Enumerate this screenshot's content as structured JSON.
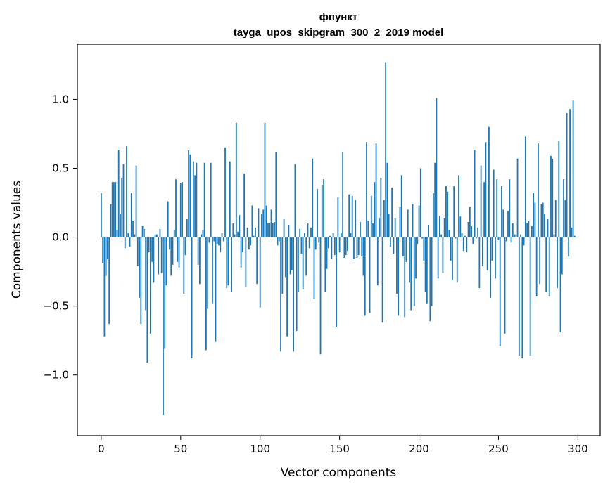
{
  "chart_data": {
    "type": "bar",
    "title": "фпункт",
    "subtitle": "tayga_upos_skipgram_300_2_2019 model",
    "xlabel": "Vector components",
    "ylabel": "Components values",
    "xlim": [
      -15,
      314
    ],
    "ylim": [
      -1.44,
      1.4
    ],
    "grid": false,
    "bar_color": "#1f77b4",
    "x_ticks": [
      0,
      50,
      100,
      150,
      200,
      250,
      300
    ],
    "x_tick_labels": [
      "0",
      "50",
      "100",
      "150",
      "200",
      "250",
      "300"
    ],
    "y_ticks": [
      -1.0,
      -0.5,
      0.0,
      0.5,
      1.0
    ],
    "y_tick_labels": [
      "−1.0",
      "−0.5",
      "0.0",
      "0.5",
      "1.0"
    ],
    "values": [
      0.32,
      -0.19,
      -0.72,
      -0.28,
      -0.16,
      -0.63,
      0.24,
      0.4,
      0.4,
      0.4,
      0.05,
      0.63,
      0.17,
      0.43,
      0.53,
      -0.08,
      0.66,
      0.03,
      -0.07,
      0.32,
      0.12,
      0.02,
      0.52,
      -0.21,
      -0.44,
      -0.63,
      0.08,
      0.06,
      -0.53,
      -0.91,
      -0.11,
      -0.7,
      -0.18,
      -0.33,
      0.02,
      0.02,
      -0.27,
      0.06,
      -0.26,
      -1.29,
      -0.81,
      -0.35,
      0.26,
      -0.09,
      -0.28,
      -0.2,
      0.05,
      0.42,
      -0.18,
      -0.22,
      0.39,
      0.4,
      -0.41,
      -0.13,
      0.13,
      0.63,
      0.6,
      -0.88,
      0.55,
      0.45,
      0.54,
      -0.2,
      -0.34,
      0.02,
      0.05,
      0.54,
      -0.82,
      -0.52,
      -0.04,
      0.54,
      -0.48,
      -0.03,
      -0.76,
      -0.05,
      -0.06,
      -0.11,
      0.03,
      -0.03,
      0.65,
      -0.37,
      -0.35,
      0.55,
      -0.4,
      0.1,
      0.02,
      0.83,
      0.04,
      0.16,
      -0.22,
      -0.11,
      0.46,
      -0.36,
      0.07,
      -0.09,
      -0.06,
      0.23,
      0.01,
      0.07,
      -0.34,
      0.21,
      -0.51,
      0.17,
      0.2,
      0.83,
      0.23,
      0.1,
      0.1,
      0.2,
      0.1,
      0.11,
      0.62,
      -0.06,
      -0.03,
      -0.83,
      -0.41,
      0.13,
      -0.29,
      -0.72,
      0.09,
      -0.27,
      -0.24,
      -0.83,
      0.53,
      -0.68,
      -0.4,
      0.06,
      -0.12,
      -0.38,
      0.03,
      -0.28,
      0.1,
      -0.08,
      0.07,
      0.57,
      -0.45,
      -0.09,
      0.35,
      -0.04,
      -0.85,
      0.38,
      0.42,
      -0.4,
      -0.23,
      -0.08,
      0.01,
      -0.16,
      0.03,
      -0.13,
      -0.65,
      0.29,
      -0.11,
      0.03,
      0.62,
      -0.15,
      -0.13,
      -0.1,
      0.31,
      0.03,
      0.3,
      -0.16,
      0.27,
      -0.15,
      -0.13,
      0.11,
      -0.14,
      -0.28,
      -0.57,
      0.69,
      0.12,
      -0.55,
      0.3,
      0.1,
      0.4,
      0.68,
      -0.35,
      0.14,
      0.43,
      -0.62,
      0.27,
      1.27,
      0.54,
      0.17,
      -0.07,
      0.36,
      -0.12,
      0.14,
      -0.41,
      -0.57,
      0.22,
      0.45,
      -0.14,
      -0.58,
      -0.18,
      0.2,
      -0.33,
      -0.53,
      0.24,
      -0.5,
      -0.3,
      -0.05,
      0.23,
      0.5,
      -0.01,
      -0.17,
      -0.4,
      -0.48,
      0.09,
      -0.61,
      -0.5,
      0.32,
      0.54,
      1.01,
      -0.3,
      0.15,
      0.02,
      -0.26,
      0.14,
      0.37,
      0.33,
      0.05,
      -0.17,
      -0.31,
      0.37,
      -0.01,
      -0.33,
      0.45,
      0.15,
      0.03,
      -0.1,
      0.01,
      -0.11,
      0.11,
      0.22,
      0.08,
      -0.05,
      0.63,
      -0.01,
      0.07,
      -0.37,
      0.52,
      -0.21,
      0.4,
      0.69,
      -0.24,
      0.8,
      -0.44,
      -0.17,
      0.49,
      -0.3,
      0.42,
      -0.02,
      -0.79,
      0.37,
      0.2,
      -0.7,
      -0.03,
      0.19,
      0.42,
      -0.04,
      0.1,
      0.02,
      0.02,
      0.57,
      -0.86,
      0.02,
      -0.88,
      -0.06,
      0.73,
      0.1,
      0.12,
      -0.86,
      0.08,
      0.32,
      0.25,
      -0.43,
      0.68,
      -0.34,
      0.24,
      0.25,
      0.17,
      -0.4,
      0.13,
      -0.43,
      0.59,
      0.57,
      0.02,
      0.27,
      -0.37,
      0.7,
      -0.69,
      -0.27,
      0.42,
      0.27,
      0.9,
      -0.14,
      0.93,
      0.07,
      0.99,
      0.01
    ]
  }
}
